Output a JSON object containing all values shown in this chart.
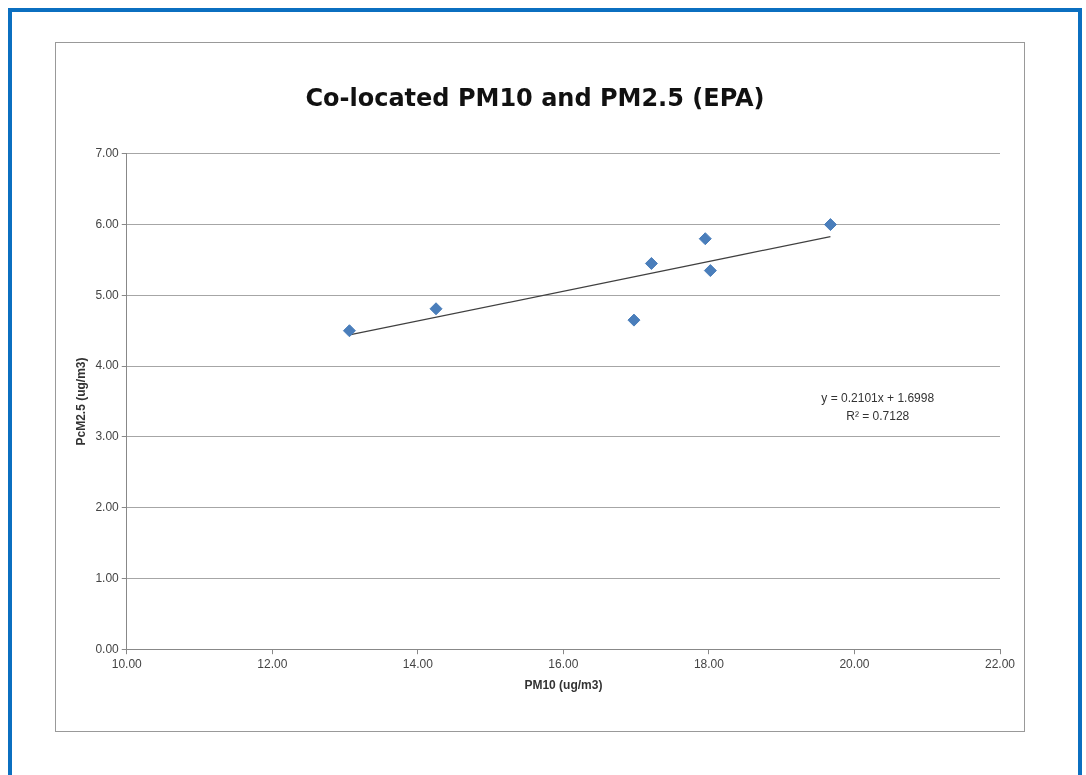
{
  "chart_data": {
    "type": "scatter",
    "title": "Co-located PM10 and PM2.5 (EPA)",
    "xlabel": "PM10 (ug/m3)",
    "ylabel": "PcM2.5 (ug/m3)",
    "xlim": [
      10,
      22
    ],
    "xticks": [
      {
        "value": 10,
        "label": "10.00"
      },
      {
        "value": 12,
        "label": "12.00"
      },
      {
        "value": 14,
        "label": "14.00"
      },
      {
        "value": 16,
        "label": "16.00"
      },
      {
        "value": 18,
        "label": "18.00"
      },
      {
        "value": 20,
        "label": "20.00"
      },
      {
        "value": 22,
        "label": "22.00"
      }
    ],
    "ylim": [
      0,
      7
    ],
    "yticks": [
      {
        "value": 0,
        "label": "0.00"
      },
      {
        "value": 1,
        "label": "1.00"
      },
      {
        "value": 2,
        "label": "2.00"
      },
      {
        "value": 3,
        "label": "3.00"
      },
      {
        "value": 4,
        "label": "4.00"
      },
      {
        "value": 5,
        "label": "5.00"
      },
      {
        "value": 6,
        "label": "6.00"
      },
      {
        "value": 7,
        "label": "7.00"
      }
    ],
    "grid": "y",
    "series": [
      {
        "marker": "diamond",
        "color": "#4a7ebb",
        "x": [
          13.06,
          14.25,
          16.97,
          17.21,
          17.95,
          18.02,
          19.67
        ],
        "values": [
          4.5,
          4.81,
          4.65,
          5.45,
          5.8,
          5.35,
          6.0
        ]
      },
      {
        "type": "line",
        "marker": "none",
        "color": "#404040",
        "x": [
          13.06,
          19.67
        ],
        "values": [
          4.44,
          5.83
        ]
      }
    ],
    "annotations": [
      "y = 0.2101x + 1.6998",
      "R² = 0.7128"
    ]
  }
}
